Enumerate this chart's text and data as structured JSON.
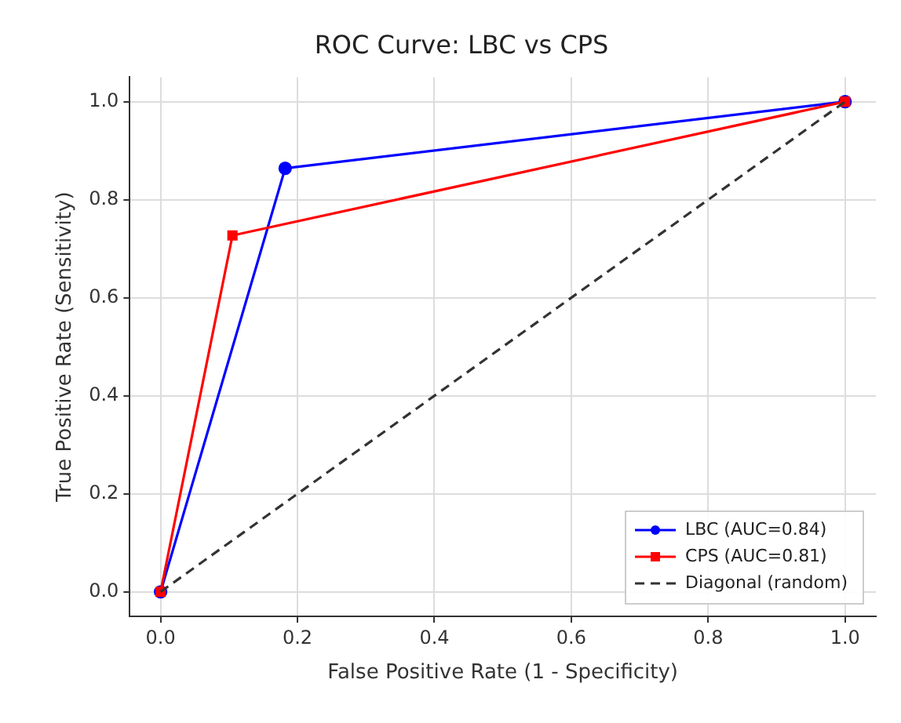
{
  "chart_data": {
    "type": "line",
    "title": "ROC Curve: LBC vs CPS",
    "xlabel": "False Positive Rate (1 - Specificity)",
    "ylabel": "True Positive Rate (Sensitivity)",
    "series": [
      {
        "name": "LBC (AUC=0.84)",
        "color": "#0000ff",
        "x": [
          0,
          0.182,
          1
        ],
        "values": [
          0,
          0.864,
          1
        ],
        "marker": "circle",
        "line_style": "solid"
      },
      {
        "name": "CPS (AUC=0.81)",
        "color": "#ff0000",
        "x": [
          0,
          0.105,
          1
        ],
        "values": [
          0,
          0.727,
          1
        ],
        "marker": "square",
        "line_style": "solid"
      },
      {
        "name": "Diagonal (random)",
        "color": "#333333",
        "x": [
          0,
          1
        ],
        "values": [
          0,
          1
        ],
        "marker": "none",
        "line_style": "dashed"
      }
    ],
    "xlim": [
      -0.045,
      1.045
    ],
    "ylim": [
      -0.05,
      1.05
    ],
    "xticks": [
      {
        "value": 0,
        "label": "0.0"
      },
      {
        "value": 0.2,
        "label": "0.2"
      },
      {
        "value": 0.4,
        "label": "0.4"
      },
      {
        "value": 0.6,
        "label": "0.6"
      },
      {
        "value": 0.8,
        "label": "0.8"
      },
      {
        "value": 1,
        "label": "1.0"
      }
    ],
    "yticks": [
      {
        "value": 0,
        "label": "0.0"
      },
      {
        "value": 0.2,
        "label": "0.2"
      },
      {
        "value": 0.4,
        "label": "0.4"
      },
      {
        "value": 0.6,
        "label": "0.6"
      },
      {
        "value": 0.8,
        "label": "0.8"
      },
      {
        "value": 1,
        "label": "1.0"
      }
    ],
    "grid": true,
    "legend": "bottom right"
  }
}
